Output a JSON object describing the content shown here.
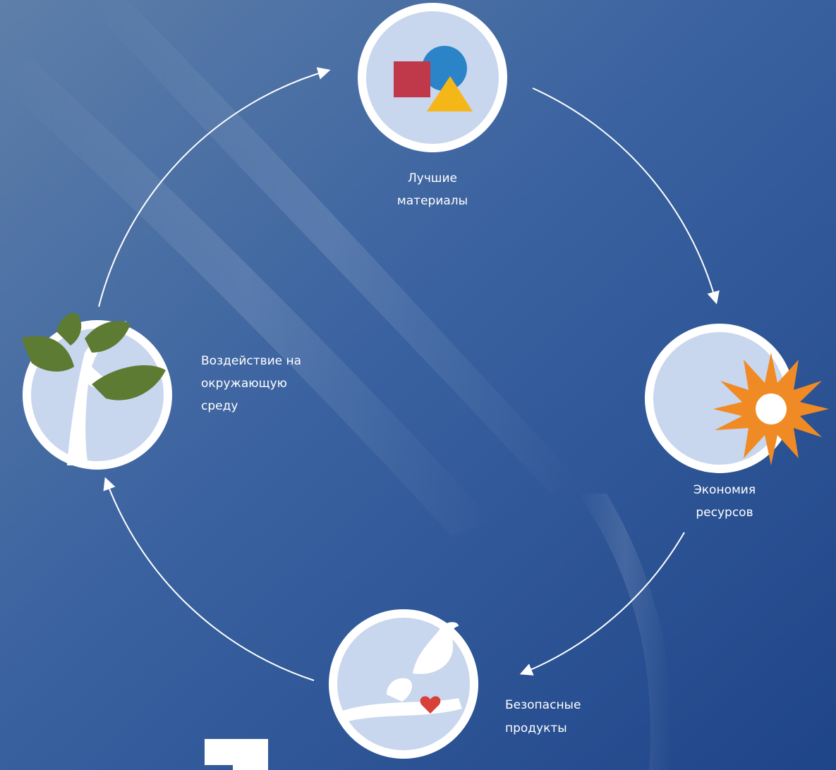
{
  "nodes": [
    {
      "lines": [
        "Лучшие",
        "материалы"
      ]
    },
    {
      "lines": [
        "Экономия",
        "ресурсов"
      ]
    },
    {
      "lines": [
        "Безопасные",
        "продукты"
      ]
    },
    {
      "lines": [
        "Воздействие на",
        "окружающую",
        "среду"
      ]
    }
  ]
}
